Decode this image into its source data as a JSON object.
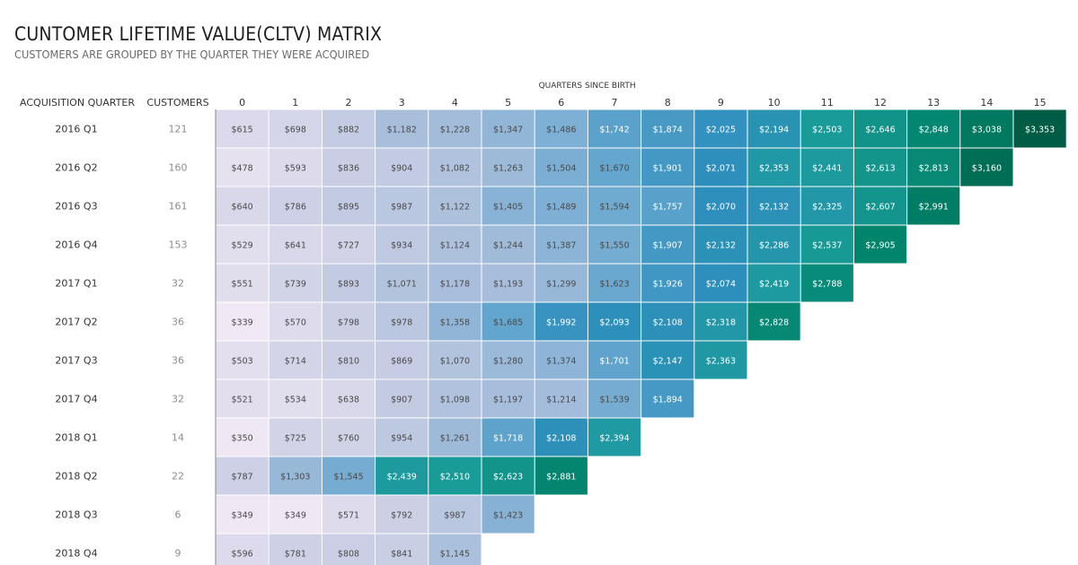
{
  "header": {
    "title": "CUNTOMER LIFETIME VALUE(CLTV) MATRIX",
    "subtitle": "CUSTOMERS ARE GROUPED BY THE QUARTER THEY WERE ACQUIRED"
  },
  "colors": {
    "low": "#f0e8f4",
    "mid1": "#cfd1e6",
    "mid2": "#a6bddb",
    "mid3": "#6aa8d0",
    "mid4": "#2e8fbd",
    "mid5": "#1a9c9a",
    "high1": "#00836a",
    "high2": "#005c44",
    "axis_line": "#888888"
  },
  "chart_data": {
    "type": "heatmap",
    "column_axis_title": "QUARTERS SINCE BIRTH",
    "row_axis_title": "ACQUISITION QUARTER",
    "customers_header": "CUSTOMERS",
    "columns": [
      "0",
      "1",
      "2",
      "3",
      "4",
      "5",
      "6",
      "7",
      "8",
      "9",
      "10",
      "11",
      "12",
      "13",
      "14",
      "15"
    ],
    "rows": [
      {
        "quarter": "2016 Q1",
        "customers": "121",
        "values": [
          615,
          698,
          882,
          1182,
          1228,
          1347,
          1486,
          1742,
          1874,
          2025,
          2194,
          2503,
          2646,
          2848,
          3038,
          3353
        ],
        "labels": [
          "$615",
          "$698",
          "$882",
          "$1,182",
          "$1,228",
          "$1,347",
          "$1,486",
          "$1,742",
          "$1,874",
          "$2,025",
          "$2,194",
          "$2,503",
          "$2,646",
          "$2,848",
          "$3,038",
          "$3,353"
        ]
      },
      {
        "quarter": "2016 Q2",
        "customers": "160",
        "values": [
          478,
          593,
          836,
          904,
          1082,
          1263,
          1504,
          1670,
          1901,
          2071,
          2353,
          2441,
          2613,
          2813,
          3160
        ],
        "labels": [
          "$478",
          "$593",
          "$836",
          "$904",
          "$1,082",
          "$1,263",
          "$1,504",
          "$1,670",
          "$1,901",
          "$2,071",
          "$2,353",
          "$2,441",
          "$2,613",
          "$2,813",
          "$3,160"
        ]
      },
      {
        "quarter": "2016 Q3",
        "customers": "161",
        "values": [
          640,
          786,
          895,
          987,
          1122,
          1405,
          1489,
          1594,
          1757,
          2070,
          2132,
          2325,
          2607,
          2991
        ],
        "labels": [
          "$640",
          "$786",
          "$895",
          "$987",
          "$1,122",
          "$1,405",
          "$1,489",
          "$1,594",
          "$1,757",
          "$2,070",
          "$2,132",
          "$2,325",
          "$2,607",
          "$2,991"
        ]
      },
      {
        "quarter": "2016 Q4",
        "customers": "153",
        "values": [
          529,
          641,
          727,
          934,
          1124,
          1244,
          1387,
          1550,
          1907,
          2132,
          2286,
          2537,
          2905
        ],
        "labels": [
          "$529",
          "$641",
          "$727",
          "$934",
          "$1,124",
          "$1,244",
          "$1,387",
          "$1,550",
          "$1,907",
          "$2,132",
          "$2,286",
          "$2,537",
          "$2,905"
        ]
      },
      {
        "quarter": "2017 Q1",
        "customers": "32",
        "values": [
          551,
          739,
          893,
          1071,
          1178,
          1193,
          1299,
          1623,
          1926,
          2074,
          2419,
          2788
        ],
        "labels": [
          "$551",
          "$739",
          "$893",
          "$1,071",
          "$1,178",
          "$1,193",
          "$1,299",
          "$1,623",
          "$1,926",
          "$2,074",
          "$2,419",
          "$2,788"
        ]
      },
      {
        "quarter": "2017 Q2",
        "customers": "36",
        "values": [
          339,
          570,
          798,
          978,
          1358,
          1685,
          1992,
          2093,
          2108,
          2318,
          2828
        ],
        "labels": [
          "$339",
          "$570",
          "$798",
          "$978",
          "$1,358",
          "$1,685",
          "$1,992",
          "$2,093",
          "$2,108",
          "$2,318",
          "$2,828"
        ]
      },
      {
        "quarter": "2017 Q3",
        "customers": "36",
        "values": [
          503,
          714,
          810,
          869,
          1070,
          1280,
          1374,
          1701,
          2147,
          2363
        ],
        "labels": [
          "$503",
          "$714",
          "$810",
          "$869",
          "$1,070",
          "$1,280",
          "$1,374",
          "$1,701",
          "$2,147",
          "$2,363"
        ]
      },
      {
        "quarter": "2017 Q4",
        "customers": "32",
        "values": [
          521,
          534,
          638,
          907,
          1098,
          1197,
          1214,
          1539,
          1894
        ],
        "labels": [
          "$521",
          "$534",
          "$638",
          "$907",
          "$1,098",
          "$1,197",
          "$1,214",
          "$1,539",
          "$1,894"
        ]
      },
      {
        "quarter": "2018 Q1",
        "customers": "14",
        "values": [
          350,
          725,
          760,
          954,
          1261,
          1718,
          2108,
          2394
        ],
        "labels": [
          "$350",
          "$725",
          "$760",
          "$954",
          "$1,261",
          "$1,718",
          "$2,108",
          "$2,394"
        ]
      },
      {
        "quarter": "2018 Q2",
        "customers": "22",
        "values": [
          787,
          1303,
          1545,
          2439,
          2510,
          2623,
          2881
        ],
        "labels": [
          "$787",
          "$1,303",
          "$1,545",
          "$2,439",
          "$2,510",
          "$2,623",
          "$2,881"
        ]
      },
      {
        "quarter": "2018 Q3",
        "customers": "6",
        "values": [
          349,
          349,
          571,
          792,
          987,
          1423
        ],
        "labels": [
          "$349",
          "$349",
          "$571",
          "$792",
          "$987",
          "$1,423"
        ]
      },
      {
        "quarter": "2018 Q4",
        "customers": "9",
        "values": [
          596,
          781,
          808,
          841,
          1145
        ],
        "labels": [
          "$596",
          "$781",
          "$808",
          "$841",
          "$1,145"
        ]
      }
    ],
    "value_range": [
      339,
      3353
    ]
  }
}
